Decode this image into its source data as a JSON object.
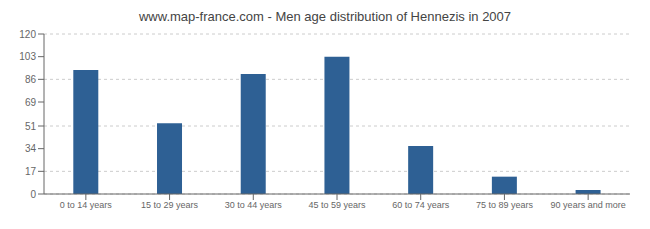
{
  "chart_data": {
    "type": "bar",
    "title": "www.map-france.com - Men age distribution of Hennezis in 2007",
    "categories": [
      "0 to 14 years",
      "15 to 29 years",
      "30 to 44 years",
      "45 to 59 years",
      "60 to 74 years",
      "75 to 89 years",
      "90 years and more"
    ],
    "values": [
      93,
      53,
      90,
      103,
      36,
      13,
      3
    ],
    "color": "#2e6094",
    "ylim": [
      0,
      120
    ],
    "yticks": [
      0,
      17,
      34,
      51,
      69,
      86,
      103,
      120
    ],
    "grid": true
  }
}
